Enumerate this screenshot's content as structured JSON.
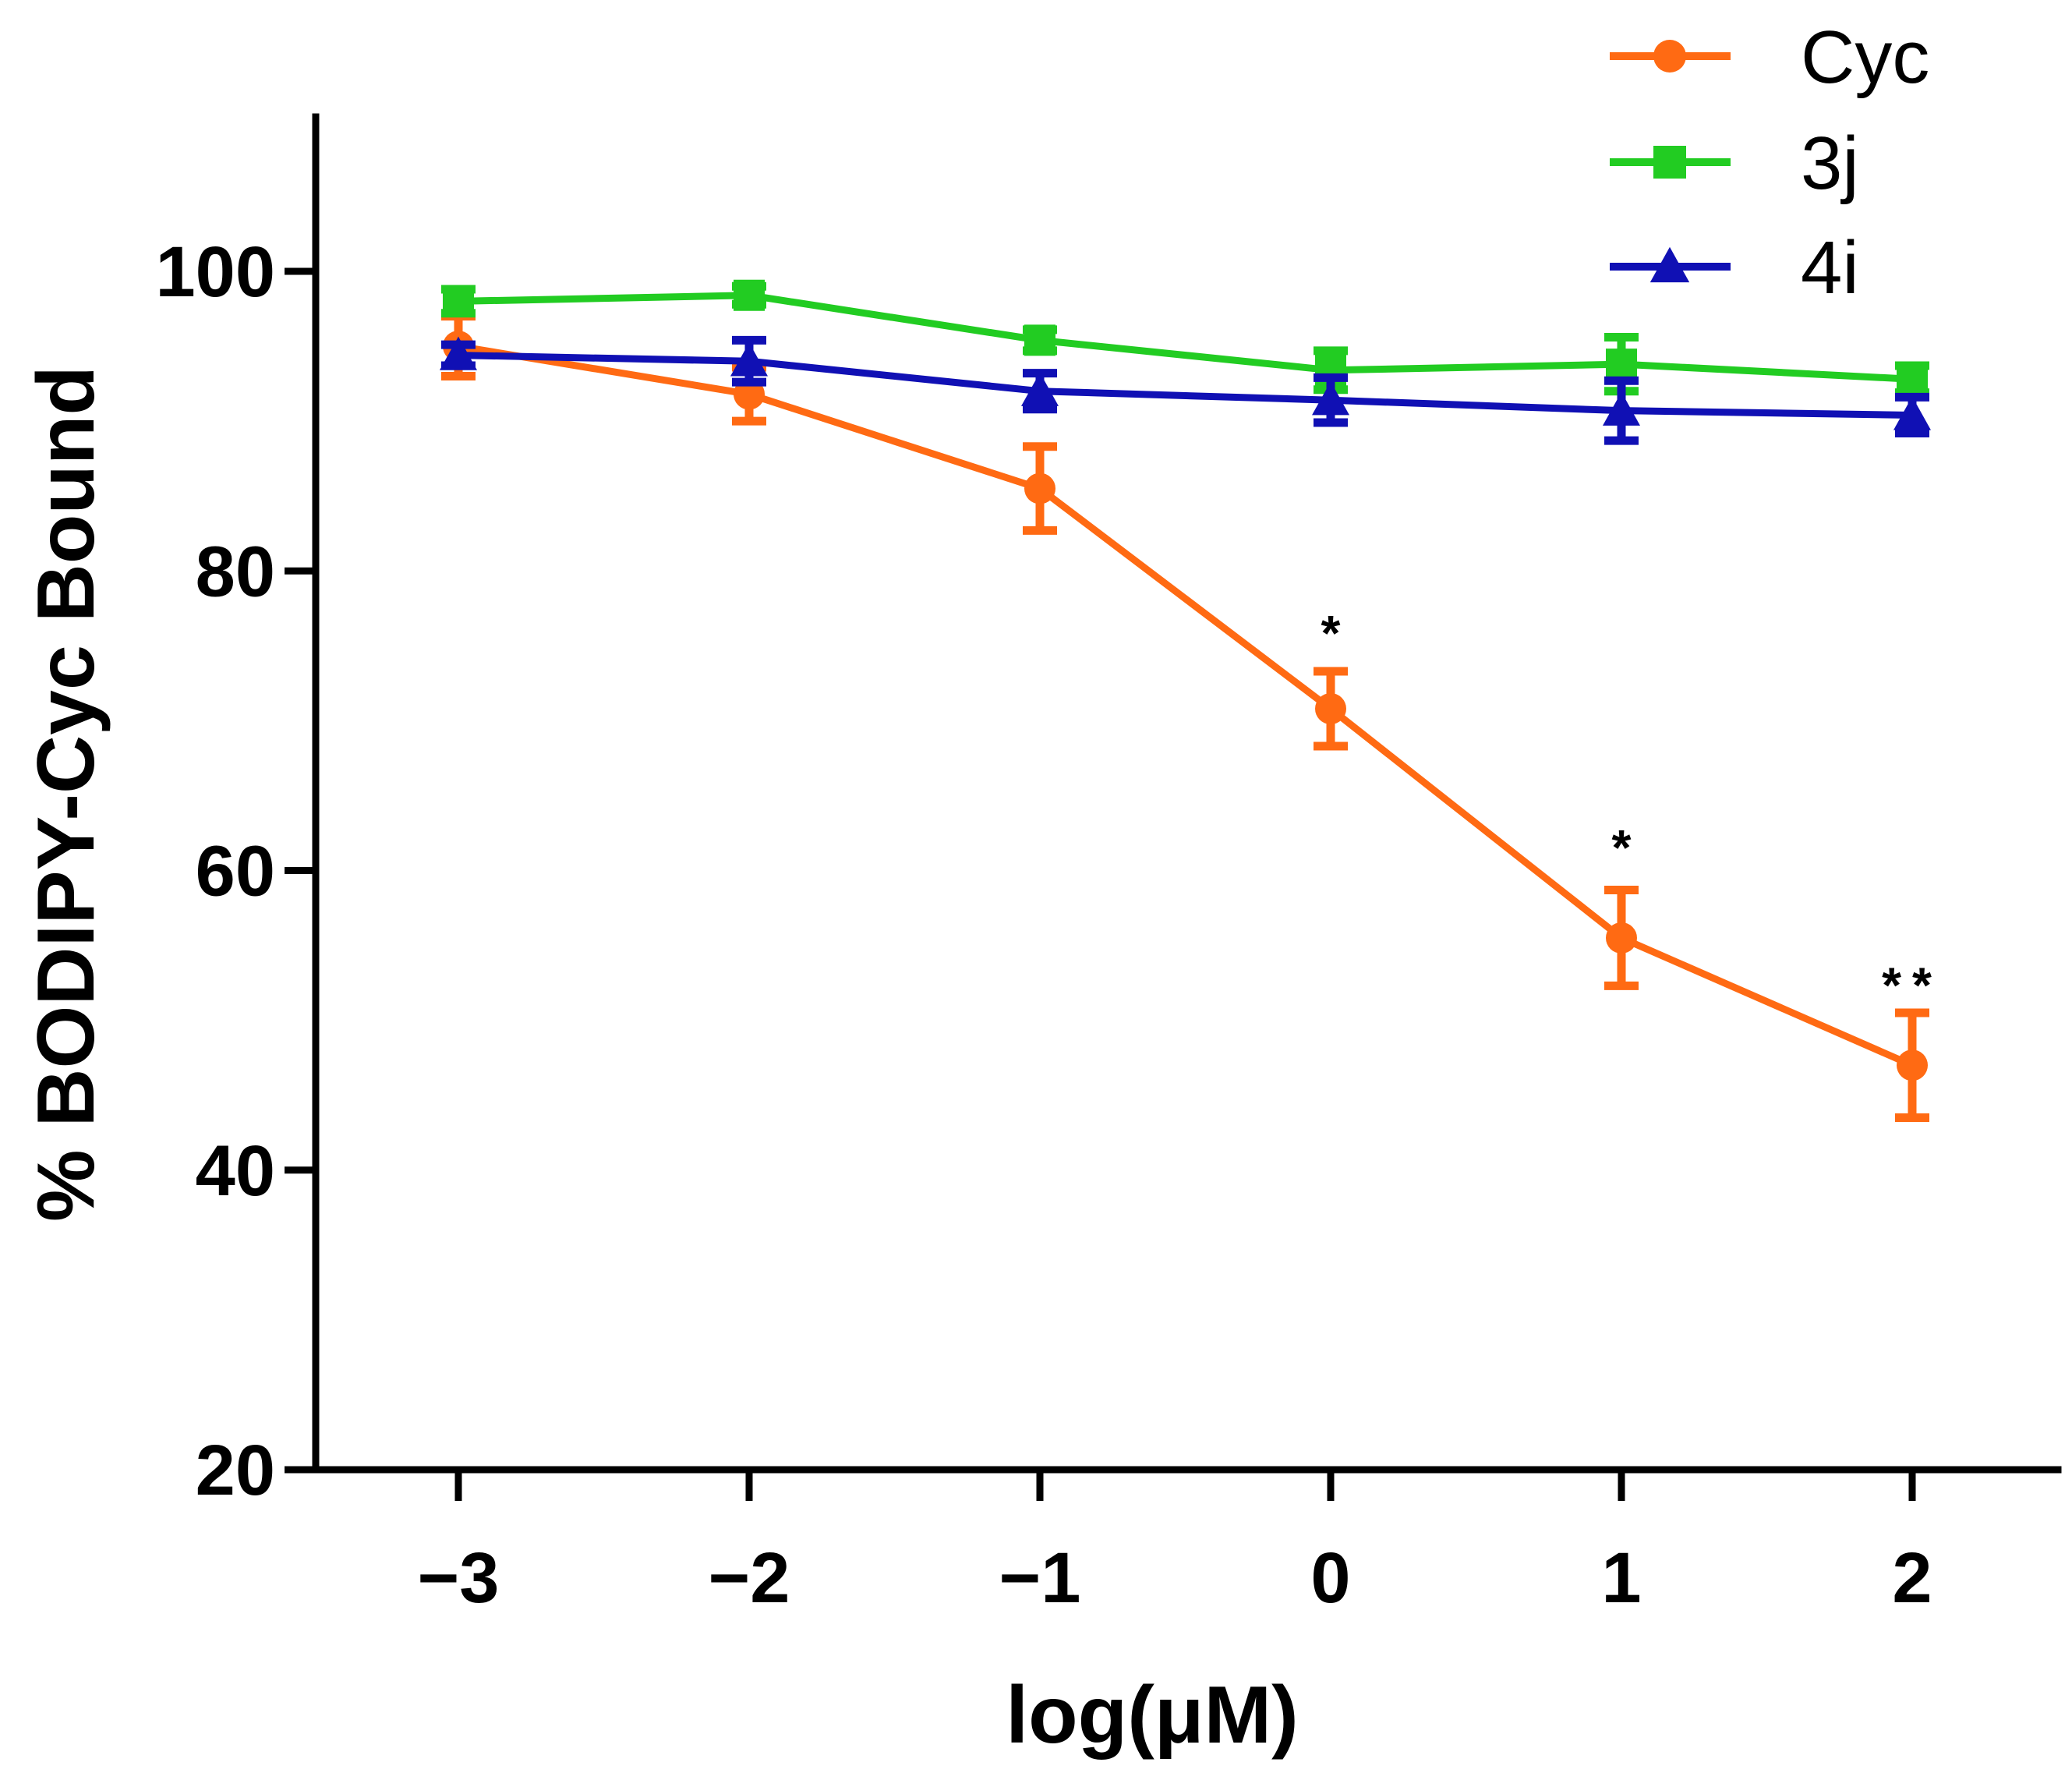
{
  "chart_data": {
    "type": "line",
    "title": "",
    "xlabel": "log(μM)",
    "ylabel": "% BODIPY-Cyc Bound",
    "xlim": [
      -3.5,
      2.5
    ],
    "ylim": [
      20,
      110
    ],
    "x": [
      -3,
      -2,
      -1,
      0,
      1,
      2
    ],
    "xticks": [
      -3,
      -2,
      -1,
      0,
      1,
      2
    ],
    "xtick_labels": [
      "−3",
      "−2",
      "−1",
      "0",
      "1",
      "2"
    ],
    "yticks": [
      20,
      40,
      60,
      80,
      100
    ],
    "ytick_labels": [
      "20",
      "40",
      "60",
      "80",
      "100"
    ],
    "grid": false,
    "legend_position": "top-right",
    "series": [
      {
        "name": "Cyc",
        "color": "#ff6a13",
        "marker": "circle",
        "values": [
          95.0,
          91.8,
          85.5,
          70.8,
          55.5,
          47.0
        ],
        "errors": [
          2.0,
          1.8,
          2.8,
          2.5,
          3.2,
          3.5
        ]
      },
      {
        "name": "3j",
        "color": "#22cc22",
        "marker": "square",
        "values": [
          98.0,
          98.4,
          95.4,
          93.4,
          93.8,
          92.8
        ],
        "errors": [
          0.8,
          0.6,
          0.7,
          1.3,
          1.8,
          0.9
        ]
      },
      {
        "name": "4i",
        "color": "#1010b4",
        "marker": "triangle",
        "values": [
          94.4,
          94.0,
          92.0,
          91.4,
          90.7,
          90.4
        ],
        "errors": [
          0.7,
          1.4,
          1.2,
          1.5,
          2.0,
          1.2
        ]
      }
    ],
    "annotations": [
      {
        "x": 0,
        "y": 76.0,
        "text": "*"
      },
      {
        "x": 1,
        "y": 61.7,
        "text": "*"
      },
      {
        "x": 2,
        "y": 52.5,
        "text": "**"
      }
    ]
  }
}
